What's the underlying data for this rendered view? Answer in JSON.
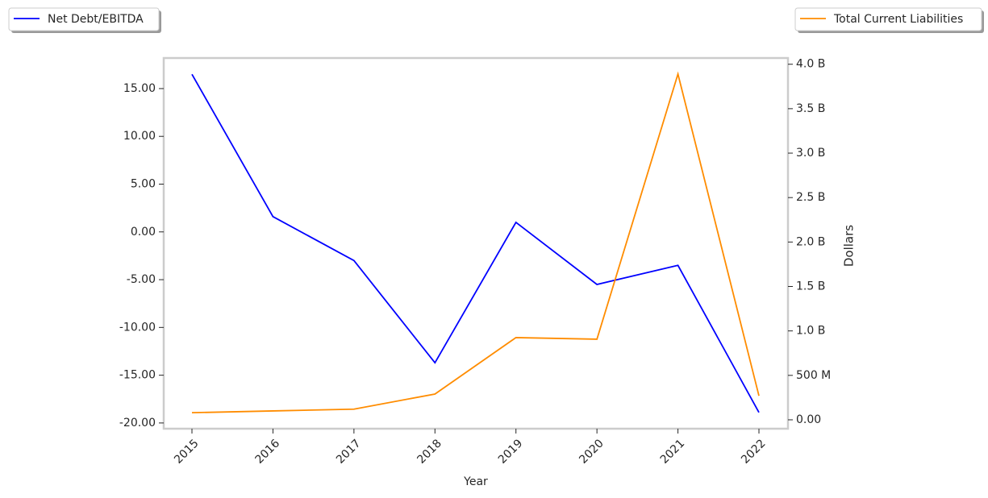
{
  "chart_data": {
    "type": "line",
    "x_label": "Year",
    "y2_label": "Dollars",
    "categories": [
      "2015",
      "2016",
      "2017",
      "2018",
      "2019",
      "2020",
      "2021",
      "2022"
    ],
    "series": [
      {
        "name": "Net Debt/EBITDA",
        "color": "#0000ff",
        "axis": "y",
        "legend": "upper left",
        "values": [
          16.5,
          1.6,
          -3.0,
          -13.7,
          1.0,
          -5.5,
          -3.5,
          -18.9
        ]
      },
      {
        "name": "Total Current Liabilities",
        "color": "#ff8c00",
        "axis": "y2",
        "legend": "upper right",
        "values": [
          80000000,
          100000000,
          120000000,
          290000000,
          925000000,
          907000000,
          3890000000,
          270000000
        ]
      }
    ],
    "ylim": [
      -20.6,
      18.2
    ],
    "yticks": [
      {
        "value": -20,
        "label": "-20.00"
      },
      {
        "value": -15,
        "label": "-15.00"
      },
      {
        "value": -10,
        "label": "-10.00"
      },
      {
        "value": -5,
        "label": "-5.00"
      },
      {
        "value": 0,
        "label": "0.00"
      },
      {
        "value": 5,
        "label": "5.00"
      },
      {
        "value": 10,
        "label": "10.00"
      },
      {
        "value": 15,
        "label": "15.00"
      }
    ],
    "y2lim": [
      -100000000,
      4070000000
    ],
    "y2ticks": [
      {
        "value": 0,
        "label": "0.00"
      },
      {
        "value": 500000000,
        "label": "500 M"
      },
      {
        "value": 1000000000,
        "label": "1.0 B"
      },
      {
        "value": 1500000000,
        "label": "1.5 B"
      },
      {
        "value": 2000000000,
        "label": "2.0 B"
      },
      {
        "value": 2500000000,
        "label": "2.5 B"
      },
      {
        "value": 3000000000,
        "label": "3.0 B"
      },
      {
        "value": 3500000000,
        "label": "3.5 B"
      },
      {
        "value": 4000000000,
        "label": "4.0 B"
      }
    ],
    "grid": false
  }
}
